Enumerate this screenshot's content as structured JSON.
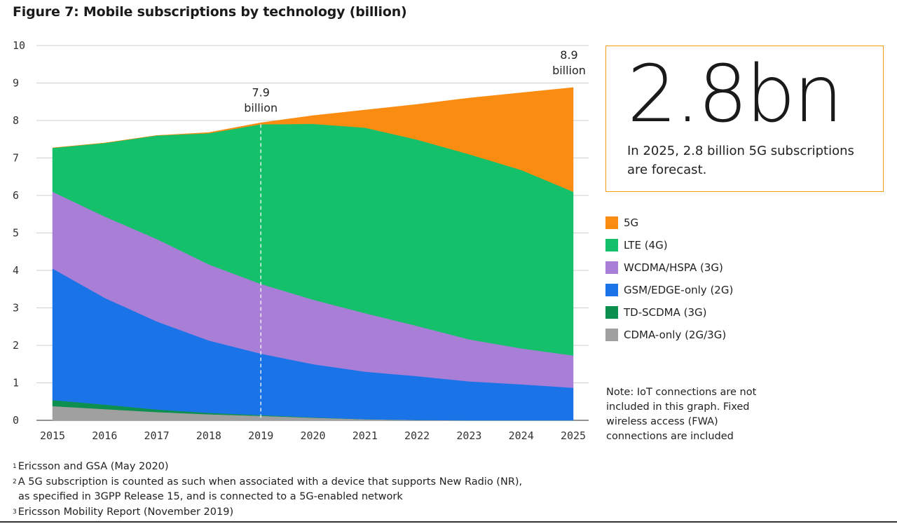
{
  "title": "Figure 7: Mobile subscriptions by technology (billion)",
  "chart_data": {
    "type": "area",
    "stacked": true,
    "x": [
      "2015",
      "2016",
      "2017",
      "2018",
      "2019",
      "2020",
      "2021",
      "2022",
      "2023",
      "2024",
      "2025"
    ],
    "ylim": [
      0,
      10
    ],
    "yticks": [
      "0",
      "1",
      "2",
      "3",
      "4",
      "5",
      "6",
      "7",
      "8",
      "9",
      "10"
    ],
    "grid": "horizontal",
    "series": [
      {
        "name": "CDMA-only (2G/3G)",
        "color": "#a0a0a0",
        "values": [
          0.38,
          0.3,
          0.22,
          0.16,
          0.12,
          0.07,
          0.03,
          0.01,
          0.0,
          0.0,
          0.0
        ]
      },
      {
        "name": "TD-SCDMA (3G)",
        "color": "#0d8f50",
        "values": [
          0.16,
          0.12,
          0.07,
          0.04,
          0.02,
          0.01,
          0.0,
          0.0,
          0.0,
          0.0,
          0.0
        ]
      },
      {
        "name": "GSM/EDGE-only (2G)",
        "color": "#1a74e8",
        "values": [
          3.51,
          2.85,
          2.35,
          1.93,
          1.64,
          1.42,
          1.27,
          1.17,
          1.04,
          0.96,
          0.87
        ]
      },
      {
        "name": "WCDMA/HSPA (3G)",
        "color": "#a87ed6",
        "values": [
          2.05,
          2.17,
          2.2,
          2.03,
          1.86,
          1.72,
          1.56,
          1.34,
          1.12,
          0.96,
          0.86
        ]
      },
      {
        "name": "LTE (4G)",
        "color": "#14c06a",
        "values": [
          1.17,
          1.96,
          2.76,
          3.5,
          4.26,
          4.69,
          4.95,
          4.97,
          4.94,
          4.76,
          4.37
        ]
      },
      {
        "name": "5G",
        "color": "#fb8c12",
        "values": [
          0.0,
          0.0,
          0.0,
          0.02,
          0.04,
          0.22,
          0.47,
          0.94,
          1.5,
          2.06,
          2.78
        ]
      }
    ],
    "annotations": [
      {
        "x": "2019",
        "value": 7.9,
        "lines": [
          "7.9",
          "billion"
        ]
      },
      {
        "x": "2025",
        "value": 8.9,
        "lines": [
          "8.9",
          "billion"
        ]
      }
    ]
  },
  "highlight": {
    "value": "2.8bn",
    "caption": "In 2025, 2.8 billion 5G subscriptions are forecast."
  },
  "legend": [
    {
      "label": "5G",
      "color": "#fb8c12"
    },
    {
      "label": "LTE (4G)",
      "color": "#14c06a"
    },
    {
      "label": "WCDMA/HSPA (3G)",
      "color": "#a87ed6"
    },
    {
      "label": "GSM/EDGE-only (2G)",
      "color": "#1a74e8"
    },
    {
      "label": "TD-SCDMA (3G)",
      "color": "#0d8f50"
    },
    {
      "label": "CDMA-only (2G/3G)",
      "color": "#a0a0a0"
    }
  ],
  "note": "Note: IoT connections are not included in this graph. Fixed wireless access (FWA) connections are included",
  "footnotes": [
    {
      "num": "1",
      "text": "Ericsson and GSA (May 2020)"
    },
    {
      "num": "2",
      "text": "A 5G subscription is counted as such when associated with a device that supports New Radio (NR),"
    },
    {
      "num": "",
      "text": "as specified in 3GPP Release 15, and is connected to a 5G-enabled network"
    },
    {
      "num": "3",
      "text": "Ericsson Mobility Report (November 2019)"
    }
  ]
}
